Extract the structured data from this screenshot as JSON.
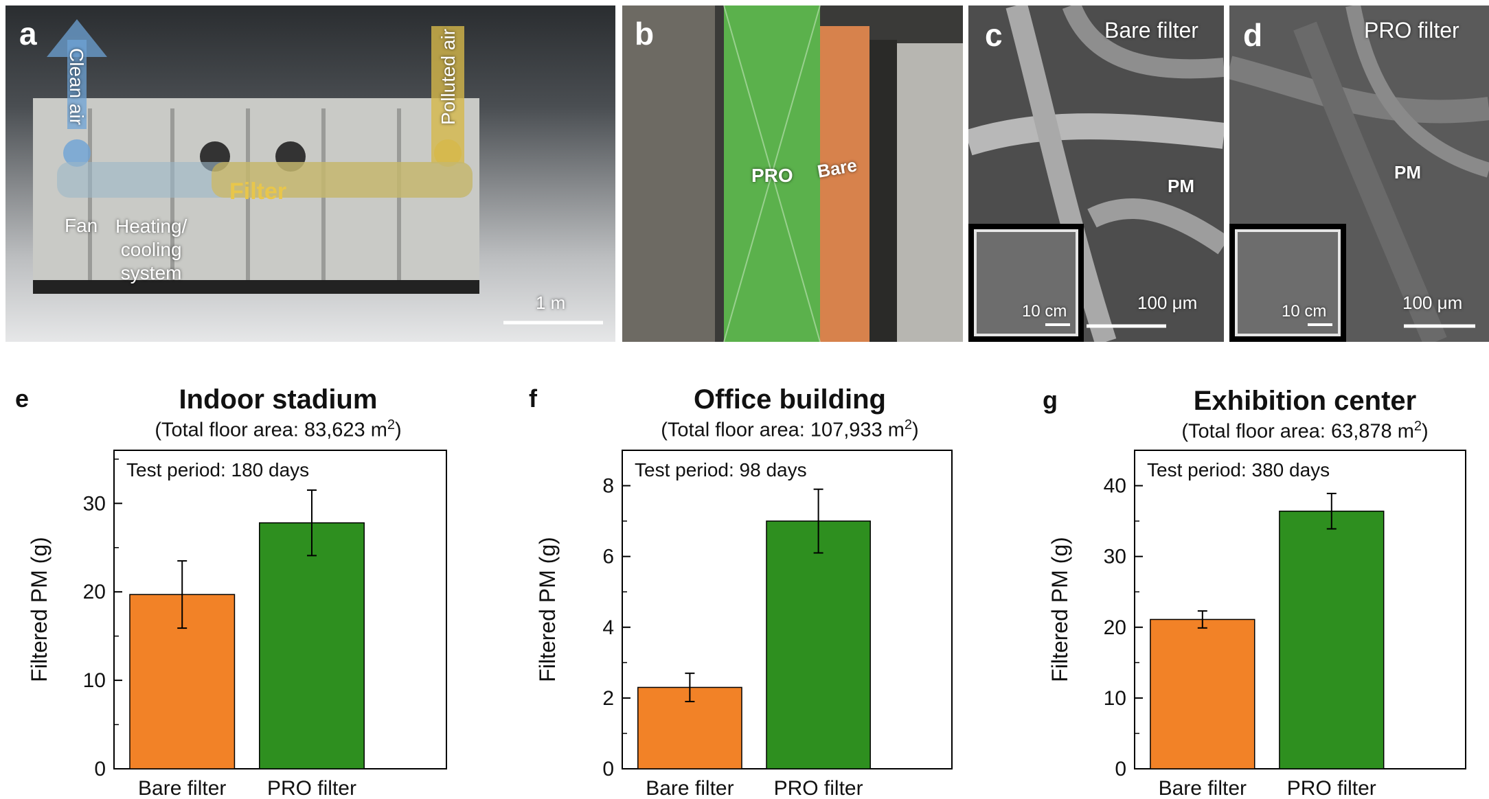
{
  "photos": {
    "a": {
      "label": "a",
      "clean_air": "Clean air",
      "polluted_air": "Polluted air",
      "filter": "Filter",
      "fan": "Fan",
      "heating": [
        "Heating/",
        "cooling",
        "system"
      ],
      "scale": "1 m"
    },
    "b": {
      "label": "b",
      "pro": "PRO",
      "bare": "Bare"
    },
    "c": {
      "label": "c",
      "title": "Bare filter",
      "pm": "PM",
      "inset_scale": "10 cm",
      "scale": "100 μm"
    },
    "d": {
      "label": "d",
      "title": "PRO filter",
      "pm": "PM",
      "inset_scale": "10 cm",
      "scale": "100 μm"
    }
  },
  "colors": {
    "bare": "#f28227",
    "pro": "#2e8f1f"
  },
  "chart_data": [
    {
      "label": "e",
      "type": "bar",
      "title": "Indoor stadium",
      "subtitle_prefix": "(Total floor area: 83,623 m",
      "subtitle_sup": "2",
      "subtitle_suffix": ")",
      "annotation": "Test period: 180 days",
      "ylabel": "Filtered PM (g)",
      "categories": [
        "Bare filter",
        "PRO filter"
      ],
      "values": [
        19.7,
        27.8
      ],
      "errors": [
        3.8,
        3.7
      ],
      "ylim": [
        0,
        36
      ],
      "yticks": [
        0,
        10,
        20,
        30
      ]
    },
    {
      "label": "f",
      "type": "bar",
      "title": "Office building",
      "subtitle_prefix": "(Total floor area: 107,933 m",
      "subtitle_sup": "2",
      "subtitle_suffix": ")",
      "annotation": "Test period: 98 days",
      "ylabel": "Filtered PM (g)",
      "categories": [
        "Bare filter",
        "PRO filter"
      ],
      "values": [
        2.3,
        7.0
      ],
      "errors": [
        0.4,
        0.9
      ],
      "ylim": [
        0,
        9
      ],
      "yticks": [
        0,
        2,
        4,
        6,
        8
      ]
    },
    {
      "label": "g",
      "type": "bar",
      "title": "Exhibition center",
      "subtitle_prefix": "(Total floor area: 63,878 m",
      "subtitle_sup": "2",
      "subtitle_suffix": ")",
      "annotation": "Test period: 380 days",
      "ylabel": "Filtered PM (g)",
      "categories": [
        "Bare filter",
        "PRO filter"
      ],
      "values": [
        21.1,
        36.4
      ],
      "errors": [
        1.2,
        2.5
      ],
      "ylim": [
        0,
        45
      ],
      "yticks": [
        0,
        10,
        20,
        30,
        40
      ]
    }
  ]
}
